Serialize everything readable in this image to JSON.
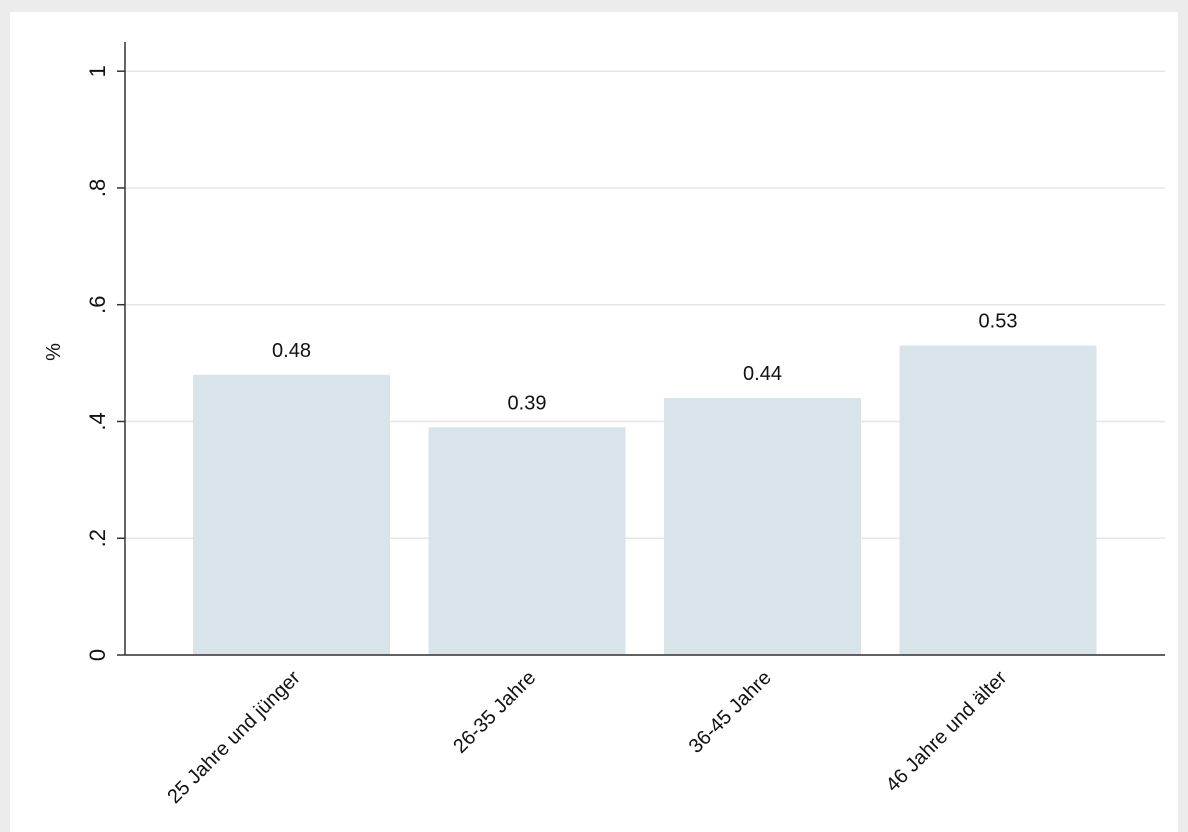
{
  "chart_data": {
    "type": "bar",
    "y_label": "%",
    "categories": [
      "25 Jahre und jünger",
      "26-35 Jahre",
      "36-45 Jahre",
      "46 Jahre und älter"
    ],
    "values": [
      0.48,
      0.39,
      0.44,
      0.53
    ],
    "color": "#d8e3ea",
    "ylim": [
      0,
      1.05
    ],
    "yticks": [
      0,
      {
        "value": 0.2,
        "label": ".2"
      },
      {
        "value": 0.4,
        "label": ".4"
      },
      {
        "value": 0.6,
        "label": ".6"
      },
      {
        "value": 0.8,
        "label": ".8"
      },
      1
    ],
    "grid": true
  }
}
